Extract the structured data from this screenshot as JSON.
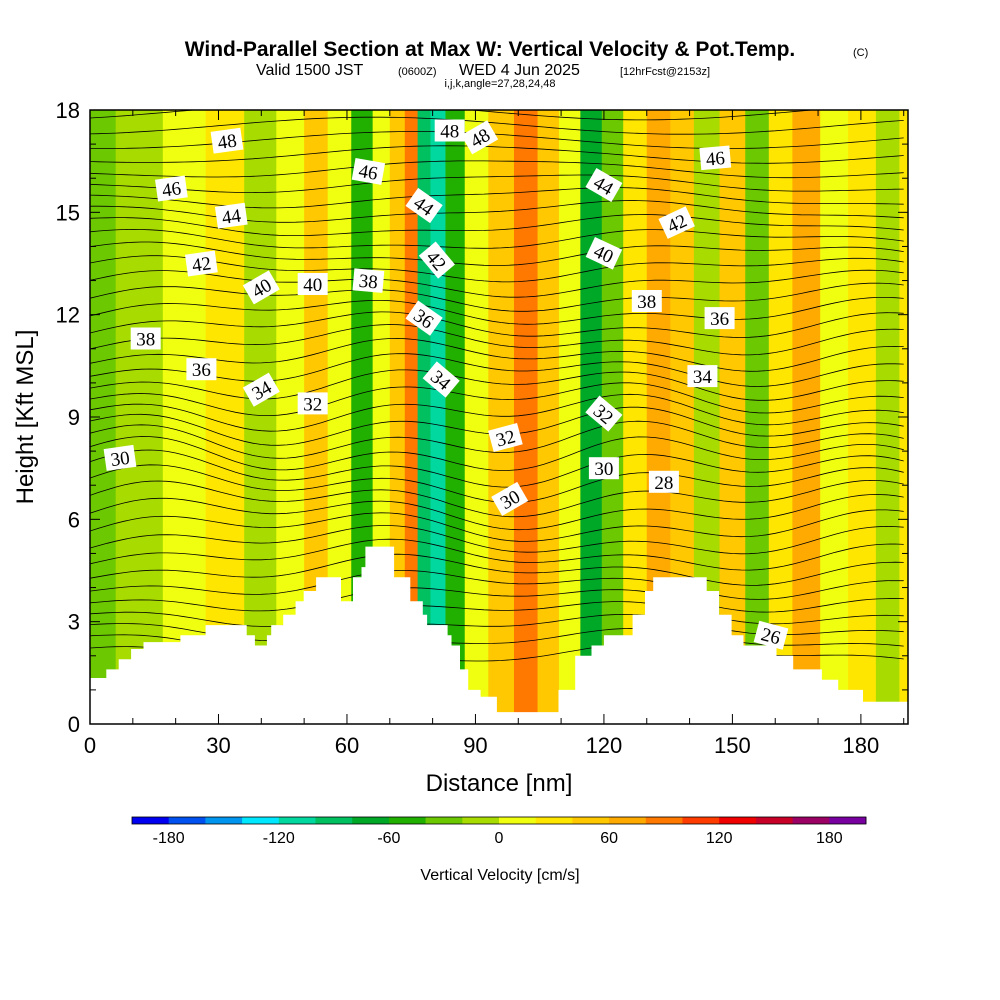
{
  "header": {
    "title": "Wind-Parallel Section at Max W: Vertical Velocity & Pot.Temp.",
    "copyright": "(C)",
    "valid_prefix": "Valid 1500 JST",
    "utc_time": "(0600Z)",
    "valid_date": "WED 4 Jun 2025",
    "forecast_info": "[12hrFcst@2153z]",
    "grid_info": "i,j,k,angle=27,28,24,48"
  },
  "chart_data": {
    "type": "heatmap",
    "xlabel": "Distance [nm]",
    "ylabel": "Height [Kft MSL]",
    "xlim": [
      0,
      191
    ],
    "ylim": [
      0,
      18
    ],
    "xticks": [
      0,
      30,
      60,
      90,
      120,
      150,
      180
    ],
    "yticks": [
      0,
      3,
      6,
      9,
      12,
      15,
      18
    ],
    "colorbar": {
      "label": "Vertical Velocity [cm/s]",
      "levels": [
        -200,
        -180,
        -160,
        -140,
        -120,
        -100,
        -80,
        -60,
        -40,
        -20,
        0,
        20,
        40,
        60,
        80,
        100,
        120,
        140,
        160,
        180,
        200
      ],
      "colors": [
        "#0000f0",
        "#0050f0",
        "#0096f0",
        "#00e8ff",
        "#00d8a0",
        "#00c060",
        "#00a828",
        "#22b000",
        "#6cc800",
        "#a8dc00",
        "#f0ff10",
        "#ffe600",
        "#ffc800",
        "#ffaa00",
        "#ff7800",
        "#ff3c00",
        "#f00000",
        "#c80028",
        "#9b0064",
        "#7800a0"
      ],
      "tick_values": [
        -180,
        -120,
        -60,
        0,
        60,
        120,
        180
      ],
      "tick_labels": [
        "-180",
        "-120",
        "-60",
        "0",
        "60",
        "120",
        "180"
      ]
    },
    "velocity_bands": [
      {
        "x": 0,
        "w": -30
      },
      {
        "x": 12,
        "w": -15
      },
      {
        "x": 22,
        "w": 10
      },
      {
        "x": 32,
        "w": 25
      },
      {
        "x": 40,
        "w": -20
      },
      {
        "x": 47,
        "w": 15
      },
      {
        "x": 53,
        "w": 40
      },
      {
        "x": 58,
        "w": 5
      },
      {
        "x": 64,
        "w": -50
      },
      {
        "x": 68,
        "w": 10
      },
      {
        "x": 72,
        "w": 50
      },
      {
        "x": 75,
        "w": 90
      },
      {
        "x": 78,
        "w": -100
      },
      {
        "x": 81,
        "w": -120
      },
      {
        "x": 85,
        "w": -50
      },
      {
        "x": 90,
        "w": 10
      },
      {
        "x": 96,
        "w": 45
      },
      {
        "x": 102,
        "w": 80
      },
      {
        "x": 107,
        "w": 55
      },
      {
        "x": 112,
        "w": 15
      },
      {
        "x": 117,
        "w": -75
      },
      {
        "x": 122,
        "w": -30
      },
      {
        "x": 127,
        "w": 25
      },
      {
        "x": 133,
        "w": 75
      },
      {
        "x": 138,
        "w": 40
      },
      {
        "x": 144,
        "w": -15
      },
      {
        "x": 150,
        "w": 55
      },
      {
        "x": 156,
        "w": -40
      },
      {
        "x": 161,
        "w": 35
      },
      {
        "x": 167,
        "w": 60
      },
      {
        "x": 174,
        "w": 5
      },
      {
        "x": 180,
        "w": 35
      },
      {
        "x": 187,
        "w": -10
      },
      {
        "x": 191,
        "w": 20
      }
    ],
    "theta_labels": [
      {
        "x": 32,
        "y": 17.1,
        "text": "48",
        "angle": -8
      },
      {
        "x": 84,
        "y": 17.4,
        "text": "48",
        "angle": 0
      },
      {
        "x": 91,
        "y": 17.2,
        "text": "48",
        "angle": -30
      },
      {
        "x": 19,
        "y": 15.7,
        "text": "46",
        "angle": -8
      },
      {
        "x": 65,
        "y": 16.2,
        "text": "46",
        "angle": 10
      },
      {
        "x": 146,
        "y": 16.6,
        "text": "46",
        "angle": -5
      },
      {
        "x": 33,
        "y": 14.9,
        "text": "44",
        "angle": -8
      },
      {
        "x": 78,
        "y": 15.2,
        "text": "44",
        "angle": 35
      },
      {
        "x": 120,
        "y": 15.8,
        "text": "44",
        "angle": 30
      },
      {
        "x": 26,
        "y": 13.5,
        "text": "42",
        "angle": -8
      },
      {
        "x": 81,
        "y": 13.6,
        "text": "42",
        "angle": 50
      },
      {
        "x": 137,
        "y": 14.7,
        "text": "42",
        "angle": -25
      },
      {
        "x": 40,
        "y": 12.8,
        "text": "40",
        "angle": -30
      },
      {
        "x": 52,
        "y": 12.9,
        "text": "40",
        "angle": 0
      },
      {
        "x": 120,
        "y": 13.8,
        "text": "40",
        "angle": 25
      },
      {
        "x": 13,
        "y": 11.3,
        "text": "38",
        "angle": 0
      },
      {
        "x": 65,
        "y": 13.0,
        "text": "38",
        "angle": 5
      },
      {
        "x": 130,
        "y": 12.4,
        "text": "38",
        "angle": 0
      },
      {
        "x": 26,
        "y": 10.4,
        "text": "36",
        "angle": 0
      },
      {
        "x": 78,
        "y": 11.9,
        "text": "36",
        "angle": 35
      },
      {
        "x": 147,
        "y": 11.9,
        "text": "36",
        "angle": 0
      },
      {
        "x": 40,
        "y": 9.8,
        "text": "34",
        "angle": -30
      },
      {
        "x": 82,
        "y": 10.1,
        "text": "34",
        "angle": 40
      },
      {
        "x": 143,
        "y": 10.2,
        "text": "34",
        "angle": 0
      },
      {
        "x": 52,
        "y": 9.4,
        "text": "32",
        "angle": 0
      },
      {
        "x": 97,
        "y": 8.4,
        "text": "32",
        "angle": -15
      },
      {
        "x": 120,
        "y": 9.1,
        "text": "32",
        "angle": 40
      },
      {
        "x": 7,
        "y": 7.8,
        "text": "30",
        "angle": -8
      },
      {
        "x": 98,
        "y": 6.6,
        "text": "30",
        "angle": -30
      },
      {
        "x": 120,
        "y": 7.5,
        "text": "30",
        "angle": 0
      },
      {
        "x": 134,
        "y": 7.1,
        "text": "28",
        "angle": 0
      },
      {
        "x": 159,
        "y": 2.6,
        "text": "26",
        "angle": 15
      }
    ],
    "terrain": [
      [
        0,
        1.35
      ],
      [
        3.8,
        1.35
      ],
      [
        3.8,
        1.6
      ],
      [
        6.7,
        1.6
      ],
      [
        6.7,
        1.9
      ],
      [
        9.6,
        1.9
      ],
      [
        9.6,
        2.2
      ],
      [
        12.5,
        2.2
      ],
      [
        12.5,
        2.4
      ],
      [
        21.1,
        2.4
      ],
      [
        21.1,
        2.6
      ],
      [
        27,
        2.6
      ],
      [
        27,
        2.9
      ],
      [
        36.6,
        2.9
      ],
      [
        36.6,
        2.6
      ],
      [
        38.5,
        2.6
      ],
      [
        38.5,
        2.3
      ],
      [
        41.3,
        2.3
      ],
      [
        41.3,
        2.6
      ],
      [
        42.3,
        2.6
      ],
      [
        42.3,
        2.9
      ],
      [
        45.1,
        2.9
      ],
      [
        45.1,
        3.2
      ],
      [
        48,
        3.2
      ],
      [
        48,
        3.6
      ],
      [
        49.9,
        3.6
      ],
      [
        49.9,
        3.9
      ],
      [
        52.8,
        3.9
      ],
      [
        52.8,
        4.3
      ],
      [
        58.6,
        4.3
      ],
      [
        58.6,
        3.6
      ],
      [
        61.4,
        3.6
      ],
      [
        61.4,
        4.3
      ],
      [
        63.4,
        4.3
      ],
      [
        63.4,
        4.6
      ],
      [
        64.3,
        4.6
      ],
      [
        64.3,
        5.2
      ],
      [
        71,
        5.2
      ],
      [
        71,
        4.3
      ],
      [
        74.8,
        4.3
      ],
      [
        74.8,
        3.6
      ],
      [
        77.7,
        3.6
      ],
      [
        77.7,
        3.2
      ],
      [
        78.7,
        3.2
      ],
      [
        78.7,
        2.9
      ],
      [
        83.5,
        2.9
      ],
      [
        83.5,
        2.6
      ],
      [
        84.4,
        2.6
      ],
      [
        84.4,
        2.3
      ],
      [
        86.4,
        2.3
      ],
      [
        86.4,
        1.6
      ],
      [
        88.3,
        1.6
      ],
      [
        88.3,
        1.0
      ],
      [
        91.2,
        1.0
      ],
      [
        91.2,
        0.8
      ],
      [
        95,
        0.8
      ],
      [
        95,
        0.35
      ],
      [
        109.4,
        0.35
      ],
      [
        109.4,
        1.0
      ],
      [
        113.3,
        1.0
      ],
      [
        113.3,
        2.0
      ],
      [
        117.1,
        2.0
      ],
      [
        117.1,
        2.3
      ],
      [
        120,
        2.3
      ],
      [
        120,
        2.6
      ],
      [
        126.7,
        2.6
      ],
      [
        126.7,
        3.2
      ],
      [
        129.6,
        3.2
      ],
      [
        129.6,
        3.9
      ],
      [
        131.5,
        3.9
      ],
      [
        131.5,
        4.3
      ],
      [
        144,
        4.3
      ],
      [
        144,
        3.9
      ],
      [
        146.9,
        3.9
      ],
      [
        146.9,
        3.2
      ],
      [
        149.8,
        3.2
      ],
      [
        149.8,
        2.6
      ],
      [
        152.6,
        2.6
      ],
      [
        152.6,
        2.3
      ],
      [
        160.3,
        2.3
      ],
      [
        160.3,
        2.0
      ],
      [
        164.2,
        2.0
      ],
      [
        164.2,
        1.6
      ],
      [
        170.9,
        1.6
      ],
      [
        170.9,
        1.3
      ],
      [
        174.7,
        1.3
      ],
      [
        174.7,
        1.0
      ],
      [
        180.5,
        1.0
      ],
      [
        180.5,
        0.65
      ],
      [
        191,
        0.65
      ]
    ]
  }
}
